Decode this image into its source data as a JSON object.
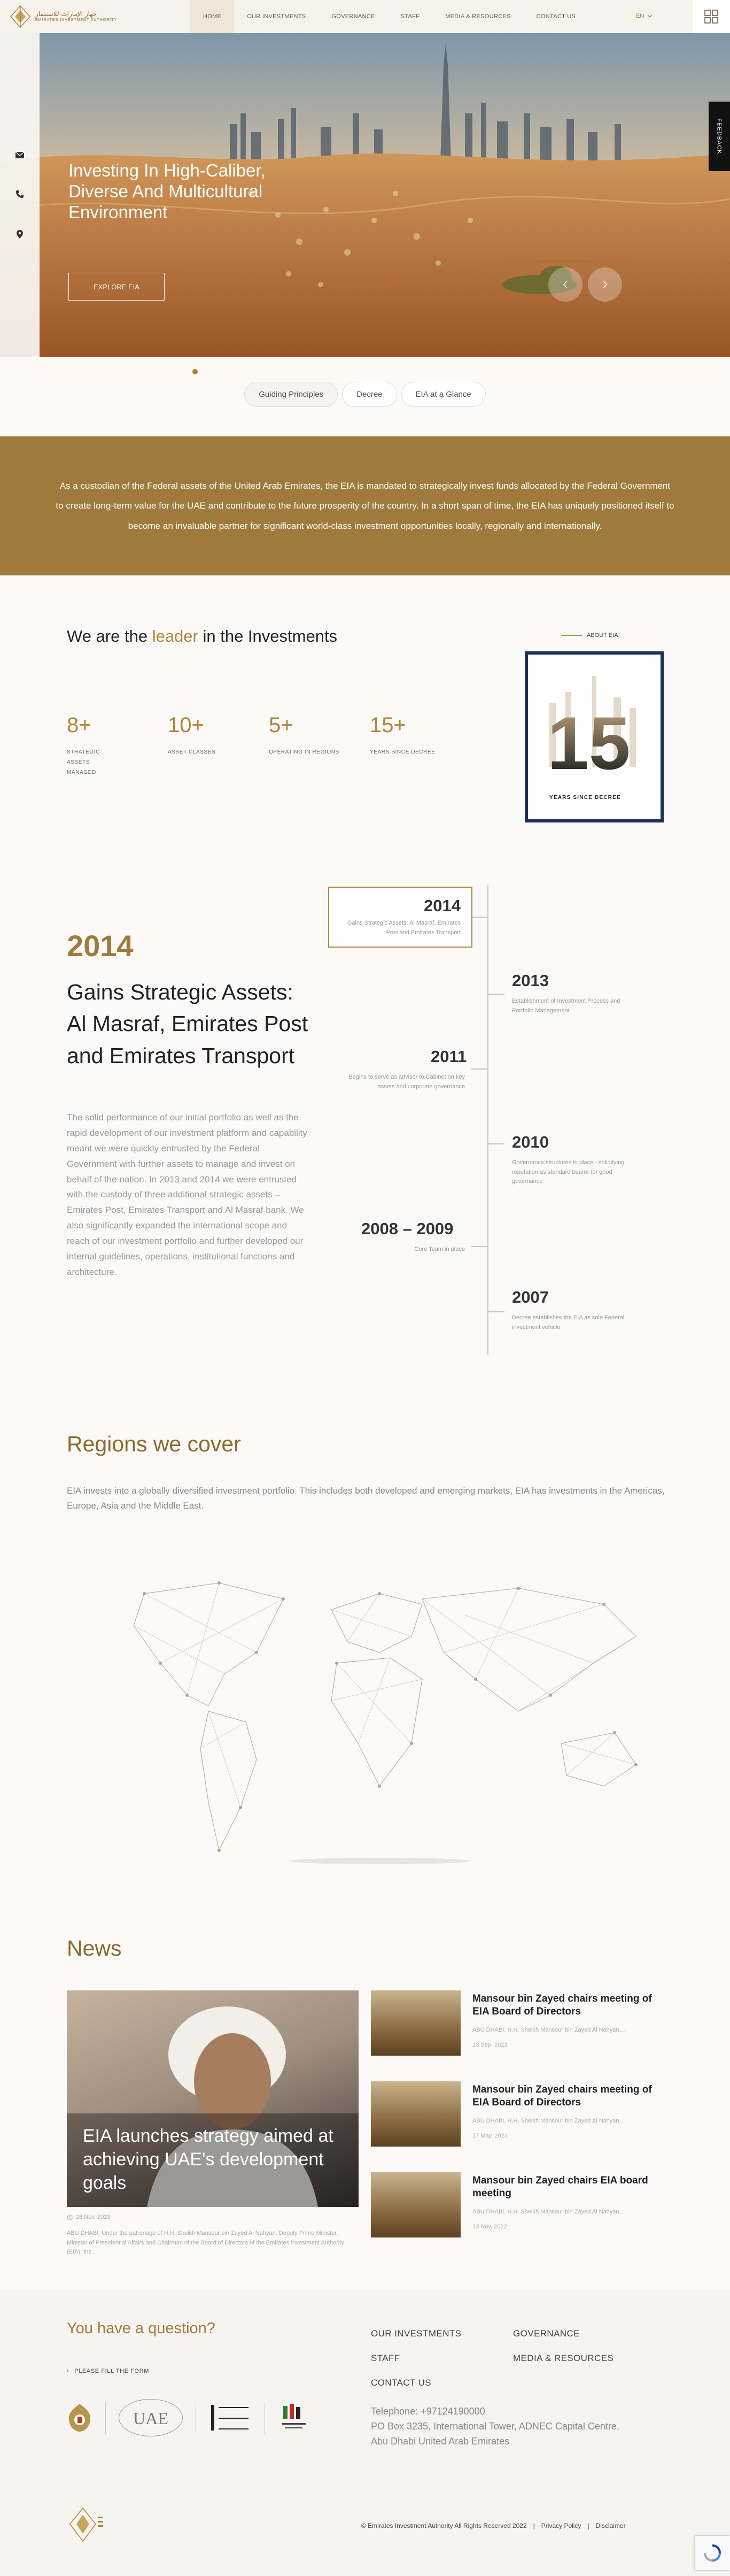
{
  "brand": {
    "name_ar": "جهاز الإمارات للاستثمار",
    "name_en": "EMIRATES INVESTMENT AUTHORITY"
  },
  "nav": {
    "items": [
      "HOME",
      "OUR INVESTMENTS",
      "GOVERNANCE",
      "STAFF",
      "MEDIA & RESOURCES",
      "CONTACT US"
    ],
    "active": "HOME",
    "language": "EN"
  },
  "hero": {
    "title": "Investing In High-Caliber, Diverse And Multicultural Environment",
    "button": "EXPLORE EIA",
    "feedback": "FEEDBACK"
  },
  "tabs": [
    "Guiding Principles",
    "Decree",
    "EIA at a Glance"
  ],
  "mandate": "As a custodian of the Federal assets of the United Arab Emirates, the EIA is mandated to strategically invest funds allocated by the Federal Government to create long-term value for the UAE and contribute to the future prosperity of the country. In a short span of time, the EIA has uniquely positioned itself to become an invaluable partner for significant world-class investment opportunities locally, regionally and internationally.",
  "leader": {
    "title_start": "We are the ",
    "title_highlight": "leader",
    "title_end": " in the Investments",
    "stats": [
      {
        "num": "8+",
        "label": "STRATEGIC ASSETS MANAGED"
      },
      {
        "num": "10+",
        "label": "ASSET CLASSES"
      },
      {
        "num": "5+",
        "label": "OPERATING IN REGIONS"
      },
      {
        "num": "15+",
        "label": "YEARS SINCE DECREE"
      }
    ],
    "about_label": "ABOUT EIA",
    "years_number": "15",
    "years_label": "YEARS SINCE DECREE"
  },
  "timeline": {
    "active_year": "2014",
    "active_heading": "Gains Strategic Assets: Al Masraf, Emirates Post and Emirates Transport",
    "active_body": "The solid performance of our initial portfolio as well as the rapid development of our investment platform and capability meant we were quickly entrusted by the Federal Government with further assets to manage and invest on behalf of the nation. In 2013 and 2014 we were entrusted with the custody of three additional strategic assets – Emirates Post, Emirates Transport and Al Masraf bank. We also significantly expanded the international scope and reach of our investment portfolio and further developed our internal guidelines, operations, institutional functions and architecture.",
    "box_year": "2014",
    "box_desc": "Gains Strategic Assets: Al Masraf, Emirates Post and Emirates Transport",
    "entries": [
      {
        "year": "2013",
        "desc": "Establishment of Investment Process and Portfolio Management"
      },
      {
        "year": "2011",
        "desc": "Begins to serve as advisor to Cabinet on key assets and corporate governance"
      },
      {
        "year": "2010",
        "desc": "Governance structures in place - solidifying reputation as standard bearer for good governance"
      },
      {
        "year": "2008 – 2009",
        "desc": "Core Team in place"
      },
      {
        "year": "2007",
        "desc": "Decree establishes the EIA as sole Federal investment vehicle"
      }
    ]
  },
  "regions": {
    "title": "Regions we cover",
    "text": "EIA invests into a globally diversified investment portfolio. This includes both developed and emerging markets, EIA has investments in the Americas, Europe, Asia and the Middle East."
  },
  "news": {
    "title": "News",
    "feature": {
      "title": "EIA launches strategy aimed at achieving UAE's development goals",
      "date": "28 Nov, 2023",
      "excerpt": "ABU DHABI: Under the patronage of H.H. Sheikh Mansour bin Zayed Al Nahyan, Deputy Prime Minister, Minister of Presidential Affairs and Chairman of the Board of Directors of the Emirates Investment Authority (EIA), the..."
    },
    "items": [
      {
        "title": "Mansour bin Zayed chairs meeting of EIA Board of Directors",
        "sub": "ABU DHABI, H.H. Sheikh Mansour bin Zayed Al Nahyan,...",
        "date": "13 Sep, 2023"
      },
      {
        "title": "Mansour bin Zayed chairs meeting of EIA Board of Directors",
        "sub": "ABU DHABI, H.H. Sheikh Mansour bin Zayed Al Nahyan,...",
        "date": "17 May, 2023"
      },
      {
        "title": "Mansour bin Zayed chairs EIA board meeting",
        "sub": "ABU DHABI, H.H. Sheikh Mansour bin Zayed Al Nahyan,...",
        "date": "13 Nov, 2022"
      }
    ]
  },
  "footer": {
    "question": "You have a question?",
    "fill_form": "PLEASE FILL THE FORM",
    "links": [
      "OUR INVESTMENTS",
      "GOVERNANCE",
      "STAFF",
      "MEDIA & RESOURCES",
      "CONTACT US"
    ],
    "telephone": "Telephone: +97124190000",
    "address_1": "PO Box 3235, International Tower, ADNEC Capital Centre,",
    "address_2": "Abu Dhabi United Arab Emirates",
    "emblem_uae": "UAE",
    "copyright": "© Emirates Investment Authority All Rights Reserved 2022",
    "privacy": "Privacy Policy",
    "disclaimer": "Disclaimer"
  },
  "colors": {
    "gold": "#b08435",
    "band": "#a07a3c",
    "dark": "#222222"
  }
}
